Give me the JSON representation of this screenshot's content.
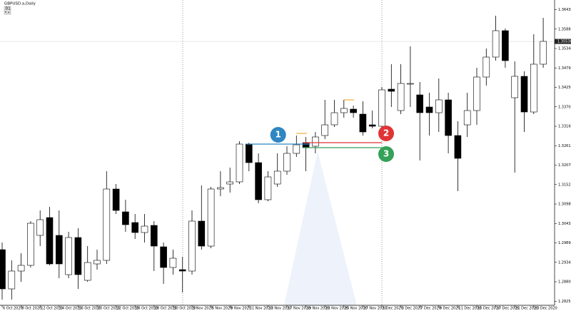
{
  "chart_data": {
    "type": "candlestick",
    "title": "GBPUSD.a,Daily",
    "timeframe": "D1",
    "categories": [
      "6 Oct 2020",
      null,
      "8 Oct 2020",
      null,
      "12 Oct 2020",
      null,
      "14 Oct 2020",
      null,
      "16 Oct 2020",
      null,
      "20 Oct 2020",
      null,
      "22 Oct 2020",
      null,
      "26 Oct 2020",
      null,
      "28 Oct 2020",
      null,
      "30 Oct 2020",
      null,
      "3 Nov 2020",
      null,
      "5 Nov 2020",
      null,
      "9 Nov 2020",
      null,
      "11 Nov 2020",
      null,
      "13 Nov 2020",
      null,
      "17 Nov 2020",
      null,
      "19 Nov 2020",
      null,
      "23 Nov 2020",
      null,
      "25 Nov 2020",
      null,
      "27 Nov 2020",
      null,
      "1 Dec 2020",
      null,
      "3 Dec 2020",
      null,
      "7 Dec 2020",
      null,
      "9 Dec 2020",
      null,
      "11 Dec 2020",
      null,
      "15 Dec 2020",
      null,
      "17 Dec 2020",
      null,
      "21 Dec 2020",
      null,
      "23 Dec 2020",
      null
    ],
    "open": [
      1.297,
      1.286,
      1.291,
      1.2926,
      1.301,
      1.306,
      1.301,
      1.29,
      1.3004,
      1.2884,
      1.293,
      1.294,
      1.314,
      1.3076,
      1.3046,
      1.3018,
      1.3038,
      1.2978,
      1.292,
      1.2914,
      1.291,
      1.305,
      1.298,
      1.314,
      1.3154,
      1.316,
      1.3266,
      1.3214,
      1.311,
      1.3154,
      1.319,
      1.324,
      1.327,
      1.326,
      1.329,
      1.332,
      1.3354,
      1.3364,
      1.335,
      1.332,
      1.3316,
      1.342,
      1.336,
      1.3434,
      1.3404,
      1.337,
      1.3354,
      1.339,
      1.329,
      1.332,
      1.336,
      1.3454,
      1.351,
      1.3584,
      1.3396,
      1.3456,
      1.3356,
      1.349
    ],
    "high": [
      1.299,
      1.294,
      1.296,
      1.305,
      1.308,
      1.309,
      1.308,
      1.302,
      1.303,
      1.298,
      1.297,
      1.319,
      1.3154,
      1.311,
      1.307,
      1.307,
      1.305,
      1.299,
      1.297,
      1.295,
      1.308,
      1.315,
      1.3146,
      1.319,
      1.32,
      1.3274,
      1.327,
      1.324,
      1.319,
      1.324,
      1.326,
      1.329,
      1.3286,
      1.33,
      1.339,
      1.339,
      1.339,
      1.3374,
      1.3386,
      1.336,
      1.3426,
      1.349,
      1.349,
      1.354,
      1.344,
      1.341,
      1.345,
      1.341,
      1.333,
      1.341,
      1.348,
      1.3534,
      1.3626,
      1.359,
      1.3498,
      1.347,
      1.3574,
      1.362
    ],
    "low": [
      1.283,
      1.283,
      1.288,
      1.292,
      1.298,
      1.2926,
      1.289,
      1.289,
      1.286,
      1.288,
      1.2914,
      1.293,
      1.307,
      1.302,
      1.3,
      1.299,
      1.291,
      1.2874,
      1.29,
      1.285,
      1.29,
      1.297,
      1.2974,
      1.312,
      1.313,
      1.3154,
      1.319,
      1.31,
      1.3106,
      1.3146,
      1.318,
      1.323,
      1.319,
      1.324,
      1.328,
      1.3314,
      1.334,
      1.334,
      1.329,
      1.331,
      1.331,
      1.337,
      1.335,
      1.337,
      1.322,
      1.329,
      1.33,
      1.324,
      1.3134,
      1.3286,
      1.332,
      1.343,
      1.35,
      1.348,
      1.3186,
      1.33,
      1.335,
      1.348
    ],
    "close": [
      1.286,
      1.291,
      1.2926,
      1.3044,
      1.3054,
      1.293,
      1.293,
      1.3004,
      1.29,
      1.2934,
      1.294,
      1.314,
      1.308,
      1.304,
      1.3018,
      1.3036,
      1.298,
      1.292,
      1.2946,
      1.291,
      1.305,
      1.298,
      1.314,
      1.3144,
      1.316,
      1.3266,
      1.3214,
      1.311,
      1.3174,
      1.319,
      1.324,
      1.3264,
      1.3256,
      1.3286,
      1.332,
      1.3354,
      1.3366,
      1.3354,
      1.33,
      1.3316,
      1.3418,
      1.3414,
      1.3436,
      1.3436,
      1.3354,
      1.3354,
      1.339,
      1.329,
      1.3226,
      1.336,
      1.3454,
      1.351,
      1.3584,
      1.35,
      1.3456,
      1.3356,
      1.349,
      1.3554
    ],
    "up_color": "#ffffff",
    "down_color": "#000000",
    "current_price": 1.35538,
    "ylim": [
      1.2814,
      1.367
    ],
    "yticks": [
      {
        "value": 1.3643,
        "label": "1.36430"
      },
      {
        "value": 1.35885,
        "label": "1.35885"
      },
      {
        "value": 1.3534,
        "label": "1.35340"
      },
      {
        "value": 1.34795,
        "label": "1.34795"
      },
      {
        "value": 1.3425,
        "label": "1.34250"
      },
      {
        "value": 1.33705,
        "label": "1.33705"
      },
      {
        "value": 1.3316,
        "label": "1.33160"
      },
      {
        "value": 1.32615,
        "label": "1.32615"
      },
      {
        "value": 1.3207,
        "label": "1.32070"
      },
      {
        "value": 1.31525,
        "label": "1.31525"
      },
      {
        "value": 1.3098,
        "label": "1.30980"
      },
      {
        "value": 1.30435,
        "label": "1.30435"
      },
      {
        "value": 1.2989,
        "label": "1.29890"
      },
      {
        "value": 1.29345,
        "label": "1.29345"
      },
      {
        "value": 1.288,
        "label": "1.28800"
      },
      {
        "value": 1.28255,
        "label": "1.28255"
      }
    ],
    "levels": [
      {
        "label": "1",
        "color": "#2f86c3",
        "value": 1.3266,
        "from": "11 Nov 2020",
        "to": "19 Nov 2020"
      },
      {
        "label": "2",
        "color": "#e03535",
        "value": 1.327,
        "from": "19 Nov 2020",
        "to": "1 Dec 2020"
      },
      {
        "label": "3",
        "color": "#33a157",
        "value": 1.3256,
        "from": "19 Nov 2020",
        "to": "1 Dec 2020"
      }
    ]
  }
}
